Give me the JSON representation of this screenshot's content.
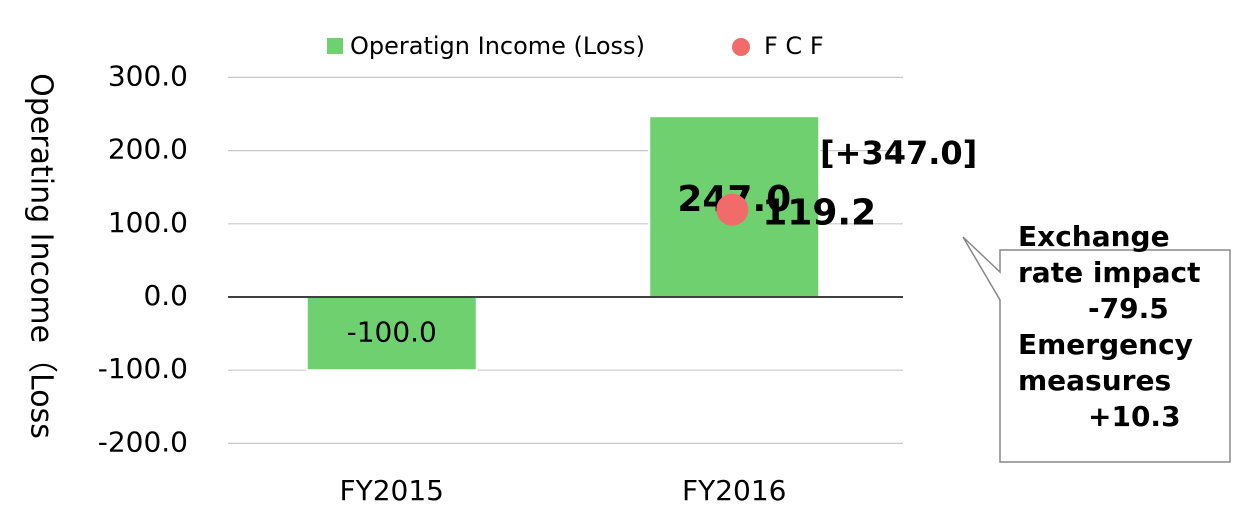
{
  "chart_data": {
    "type": "bar",
    "y_label": "Operating Income（Loss",
    "categories": [
      "FY2015",
      "FY2016"
    ],
    "series": [
      {
        "name": "Operatign Income (Loss)",
        "type": "bar",
        "color": "#6fd06f",
        "values": [
          -100,
          247
        ],
        "value_labels": [
          "-100.0",
          "247.0"
        ]
      },
      {
        "name": "F C F",
        "type": "scatter",
        "color": "#f26b6b",
        "values": [
          null,
          119.2
        ],
        "value_labels": [
          null,
          "119.2"
        ]
      }
    ],
    "ylim": [
      -200,
      300
    ],
    "yticks": [
      {
        "value": -200,
        "label": "-200.0"
      },
      {
        "value": -100,
        "label": "-100.0"
      },
      {
        "value": 0,
        "label": "0.0"
      },
      {
        "value": 100,
        "label": "100.0"
      },
      {
        "value": 200,
        "label": "200.0"
      },
      {
        "value": 300,
        "label": "300.0"
      }
    ],
    "grid": true,
    "legend": "top",
    "annotations": [
      "[+347.0]"
    ],
    "callout": [
      "Exchange",
      "rate impact",
      "-79.5",
      "Emergency",
      "measures",
      "+10.3"
    ]
  }
}
